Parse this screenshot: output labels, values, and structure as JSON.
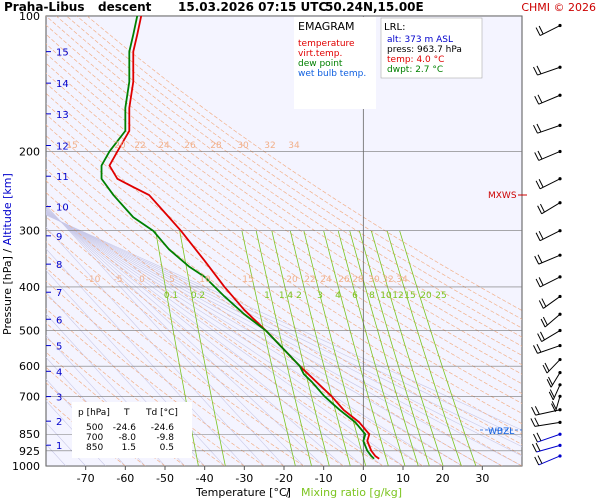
{
  "header": {
    "station": "Praha-Libus",
    "mode": "descent",
    "datetime": "15.03.2026 07:15 UTC",
    "coords": "50.24N,15.00E",
    "credit": "CHMI © 2026"
  },
  "legend": {
    "title": "EMAGRAM",
    "items": [
      {
        "label": "temperature",
        "color": "#e00000"
      },
      {
        "label": "virt.temp.",
        "color": "#e00000"
      },
      {
        "label": "dew point",
        "color": "#008000"
      },
      {
        "label": "wet bulb temp.",
        "color": "#1060e0"
      }
    ]
  },
  "lrl": {
    "title": "LRL:",
    "alt": "alt: 373 m ASL",
    "press": "press: 963.7 hPa",
    "temp": "temp: 4.0 °C",
    "dwpt": "dwpt: 2.7 °C"
  },
  "table": {
    "headers": [
      "p [hPa]",
      "T",
      "Td [°C]"
    ],
    "rows": [
      [
        "500",
        "-24.6",
        "-24.6"
      ],
      [
        "700",
        "-8.0",
        "-9.8"
      ],
      [
        "850",
        "1.5",
        "0.5"
      ]
    ]
  },
  "markers": {
    "mxws": "MXWS",
    "wbzl": "WBZL"
  },
  "colors": {
    "temperature": "#e00000",
    "dewpoint": "#008000",
    "mixing": "#7cc41f",
    "dryAdiabat": "#f2b08a",
    "moistAdiabat": "#c8c8e8",
    "background": "#f4f4ff"
  },
  "chart_data": {
    "type": "line",
    "xlabel": "Temperature [°C]",
    "xlabel2": "Mixing ratio [g/kg]",
    "ylabel": "Pressure [hPa]",
    "ylabel2": "Altitude [km]",
    "xlim": [
      -80,
      40
    ],
    "ylim": [
      1000,
      100
    ],
    "x_ticks": [
      "-70",
      "-60",
      "-50",
      "-40",
      "-30",
      "-20",
      "-10",
      "0",
      "10",
      "20",
      "30"
    ],
    "x_tick_values": [
      -70,
      -60,
      -50,
      -40,
      -30,
      -20,
      -10,
      0,
      10,
      20,
      30
    ],
    "pressure_ticks": [
      100,
      200,
      300,
      400,
      500,
      600,
      700,
      850,
      925,
      1000
    ],
    "altitude_ticks": [
      {
        "km": "1",
        "p": 899
      },
      {
        "km": "2",
        "p": 795
      },
      {
        "km": "3",
        "p": 701
      },
      {
        "km": "4",
        "p": 616
      },
      {
        "km": "5",
        "p": 540
      },
      {
        "km": "6",
        "p": 472
      },
      {
        "km": "7",
        "p": 411
      },
      {
        "km": "8",
        "p": 356
      },
      {
        "km": "9",
        "p": 308
      },
      {
        "km": "10",
        "p": 265
      },
      {
        "km": "11",
        "p": 227
      },
      {
        "km": "12",
        "p": 194
      },
      {
        "km": "13",
        "p": 165
      },
      {
        "km": "14",
        "p": 141
      },
      {
        "km": "15",
        "p": 120
      }
    ],
    "mixing_ratio_labels": [
      "0.1",
      "0.2",
      "1",
      "1.4",
      "2",
      "3",
      "4",
      "6",
      "8",
      "10",
      "12",
      "15",
      "20",
      "25"
    ],
    "mixing_ratio_values": [
      0.1,
      0.2,
      1,
      1.4,
      2,
      3,
      4,
      6,
      8,
      10,
      12,
      15,
      20,
      25
    ],
    "dry_adiabat_labels_lower": [
      "-10",
      "-5",
      "0",
      "5",
      "10",
      "15",
      "20",
      "22",
      "24",
      "26",
      "28",
      "30",
      "32",
      "34"
    ],
    "dry_adiabat_labels_upper": [
      "15",
      "20",
      "22",
      "24",
      "26",
      "28",
      "30",
      "32",
      "34"
    ],
    "series": [
      {
        "name": "temperature",
        "points": [
          [
            -56,
            100
          ],
          [
            -57,
            110
          ],
          [
            -58,
            120
          ],
          [
            -58,
            140
          ],
          [
            -59,
            160
          ],
          [
            -59,
            180
          ],
          [
            -62,
            200
          ],
          [
            -64,
            215
          ],
          [
            -62,
            230
          ],
          [
            -58,
            240
          ],
          [
            -54,
            250
          ],
          [
            -49,
            280
          ],
          [
            -46,
            300
          ],
          [
            -40,
            350
          ],
          [
            -35,
            400
          ],
          [
            -30,
            450
          ],
          [
            -24.6,
            500
          ],
          [
            -16,
            600
          ],
          [
            -8,
            700
          ],
          [
            -5,
            750
          ],
          [
            -1,
            800
          ],
          [
            1.5,
            850
          ],
          [
            1,
            880
          ],
          [
            2,
            925
          ],
          [
            3,
            950
          ],
          [
            4,
            963.7
          ]
        ]
      },
      {
        "name": "dew point",
        "points": [
          [
            -57,
            100
          ],
          [
            -58,
            110
          ],
          [
            -59,
            120
          ],
          [
            -59,
            140
          ],
          [
            -60,
            160
          ],
          [
            -60,
            180
          ],
          [
            -64,
            200
          ],
          [
            -66,
            215
          ],
          [
            -66,
            230
          ],
          [
            -63,
            250
          ],
          [
            -58,
            280
          ],
          [
            -53,
            300
          ],
          [
            -49,
            330
          ],
          [
            -44,
            360
          ],
          [
            -40,
            380
          ],
          [
            -35,
            420
          ],
          [
            -30,
            460
          ],
          [
            -24.6,
            500
          ],
          [
            -16,
            600
          ],
          [
            -15,
            625
          ],
          [
            -13,
            650
          ],
          [
            -9.8,
            700
          ],
          [
            -6,
            750
          ],
          [
            -2,
            800
          ],
          [
            0.5,
            850
          ],
          [
            0,
            880
          ],
          [
            1,
            925
          ],
          [
            2,
            950
          ],
          [
            2.7,
            963.7
          ]
        ]
      }
    ],
    "wind_pressures": [
      105,
      130,
      150,
      175,
      200,
      230,
      260,
      300,
      340,
      380,
      420,
      460,
      500,
      540,
      580,
      620,
      660,
      700,
      750,
      800,
      850,
      900,
      950
    ]
  }
}
